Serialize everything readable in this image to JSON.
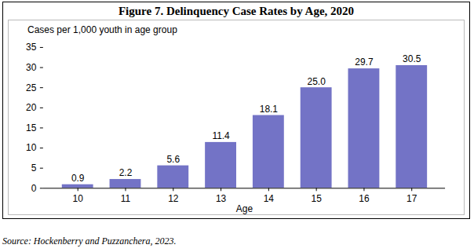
{
  "chart_data": {
    "type": "bar",
    "title": "Figure 7. Delinquency Case Rates by Age, 2020",
    "y_label": "Cases per 1,000 youth in age group",
    "x_label": "Age",
    "source": "Source: Hockenberry and Puzzanchera, 2023.",
    "categories": [
      "10",
      "11",
      "12",
      "13",
      "14",
      "15",
      "16",
      "17"
    ],
    "values": [
      0.9,
      2.2,
      5.6,
      11.4,
      18.1,
      25.0,
      29.7,
      30.5
    ],
    "value_labels": [
      "0.9",
      "2.2",
      "5.6",
      "11.4",
      "18.1",
      "25.0",
      "29.7",
      "30.5"
    ],
    "color": "#7373c6",
    "ylim": [
      0,
      35
    ],
    "yticks": [
      0,
      5,
      10,
      15,
      20,
      25,
      30,
      35
    ],
    "grid": false,
    "data_labels": true
  }
}
